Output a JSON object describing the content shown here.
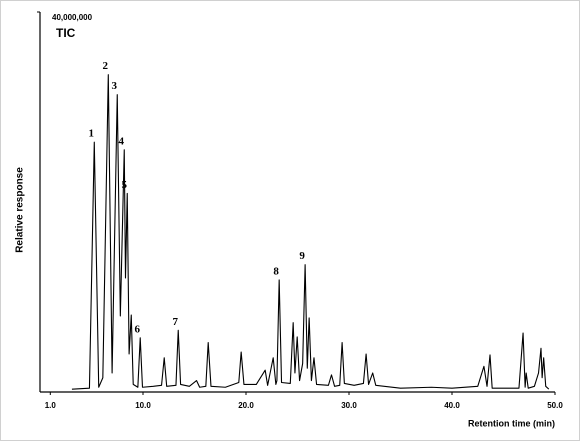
{
  "chart_data": {
    "type": "line",
    "xlabel": "Retention time (min)",
    "ylabel": "Relative response",
    "xlim": [
      0,
      50
    ],
    "ylim": [
      0,
      40000000
    ],
    "xticks": [
      {
        "value": 1,
        "label": "1.0"
      },
      {
        "value": 10,
        "label": "10.0"
      },
      {
        "value": 20,
        "label": "20.0"
      },
      {
        "value": 30,
        "label": "30.0"
      },
      {
        "value": 40,
        "label": "40.0"
      },
      {
        "value": 50,
        "label": "50.0"
      }
    ],
    "yticks": [
      {
        "value": 40000000,
        "label": "40,000,000"
      }
    ],
    "x": [
      3.1,
      4.8,
      5.27,
      5.7,
      6.1,
      6.63,
      7.0,
      7.5,
      7.8,
      8.18,
      8.3,
      8.47,
      8.65,
      8.86,
      9.05,
      9.5,
      9.73,
      9.95,
      11.0,
      11.8,
      12.06,
      12.3,
      13.2,
      13.42,
      13.65,
      14.5,
      15.2,
      15.5,
      16.1,
      16.33,
      16.6,
      18.0,
      19.3,
      19.53,
      19.8,
      21.0,
      21.86,
      22.1,
      22.64,
      22.9,
      23.0,
      23.22,
      23.45,
      24.3,
      24.58,
      24.75,
      24.97,
      25.2,
      25.5,
      25.74,
      25.95,
      26.13,
      26.35,
      26.6,
      26.85,
      28.0,
      28.3,
      28.6,
      29.1,
      29.33,
      29.55,
      30.5,
      31.4,
      31.66,
      31.9,
      32.3,
      32.6,
      35.0,
      38.0,
      40.0,
      42.5,
      43.1,
      43.4,
      43.69,
      43.9,
      46.5,
      46.9,
      47.1,
      47.2,
      47.4,
      48.0,
      48.4,
      48.64,
      48.75,
      48.9,
      49.1,
      49.4
    ],
    "series": [
      {
        "name": "TIC",
        "color": "#000000",
        "values": [
          300000,
          400000,
          26300000,
          500000,
          1500000,
          33400000,
          2000000,
          31300000,
          8000000,
          25500000,
          12000000,
          20900000,
          4000000,
          8100000,
          800000,
          500000,
          5700000,
          500000,
          600000,
          700000,
          3600000,
          600000,
          700000,
          6500000,
          800000,
          600000,
          1200000,
          500000,
          600000,
          5200000,
          600000,
          500000,
          1000000,
          4200000,
          800000,
          800000,
          2300000,
          700000,
          3600000,
          800000,
          1200000,
          11800000,
          1000000,
          900000,
          7300000,
          2000000,
          5800000,
          1200000,
          3000000,
          13400000,
          2500000,
          7800000,
          1200000,
          3600000,
          800000,
          700000,
          1800000,
          600000,
          700000,
          5200000,
          900000,
          700000,
          900000,
          4000000,
          800000,
          2000000,
          700000,
          400000,
          500000,
          400000,
          600000,
          2700000,
          600000,
          3900000,
          400000,
          400000,
          6200000,
          500000,
          2000000,
          400000,
          600000,
          2000000,
          4600000,
          1500000,
          3600000,
          600000,
          300000
        ]
      }
    ],
    "annotations": [
      {
        "text": "1",
        "x": 5.27,
        "y": 26300000
      },
      {
        "text": "2",
        "x": 6.63,
        "y": 33400000
      },
      {
        "text": "3",
        "x": 7.5,
        "y": 31300000
      },
      {
        "text": "4",
        "x": 8.18,
        "y": 25500000
      },
      {
        "text": "5",
        "x": 8.47,
        "y": 20900000
      },
      {
        "text": "6",
        "x": 9.73,
        "y": 5700000
      },
      {
        "text": "7",
        "x": 13.42,
        "y": 6500000
      },
      {
        "text": "8",
        "x": 23.22,
        "y": 11800000
      },
      {
        "text": "9",
        "x": 25.74,
        "y": 13400000
      }
    ]
  }
}
